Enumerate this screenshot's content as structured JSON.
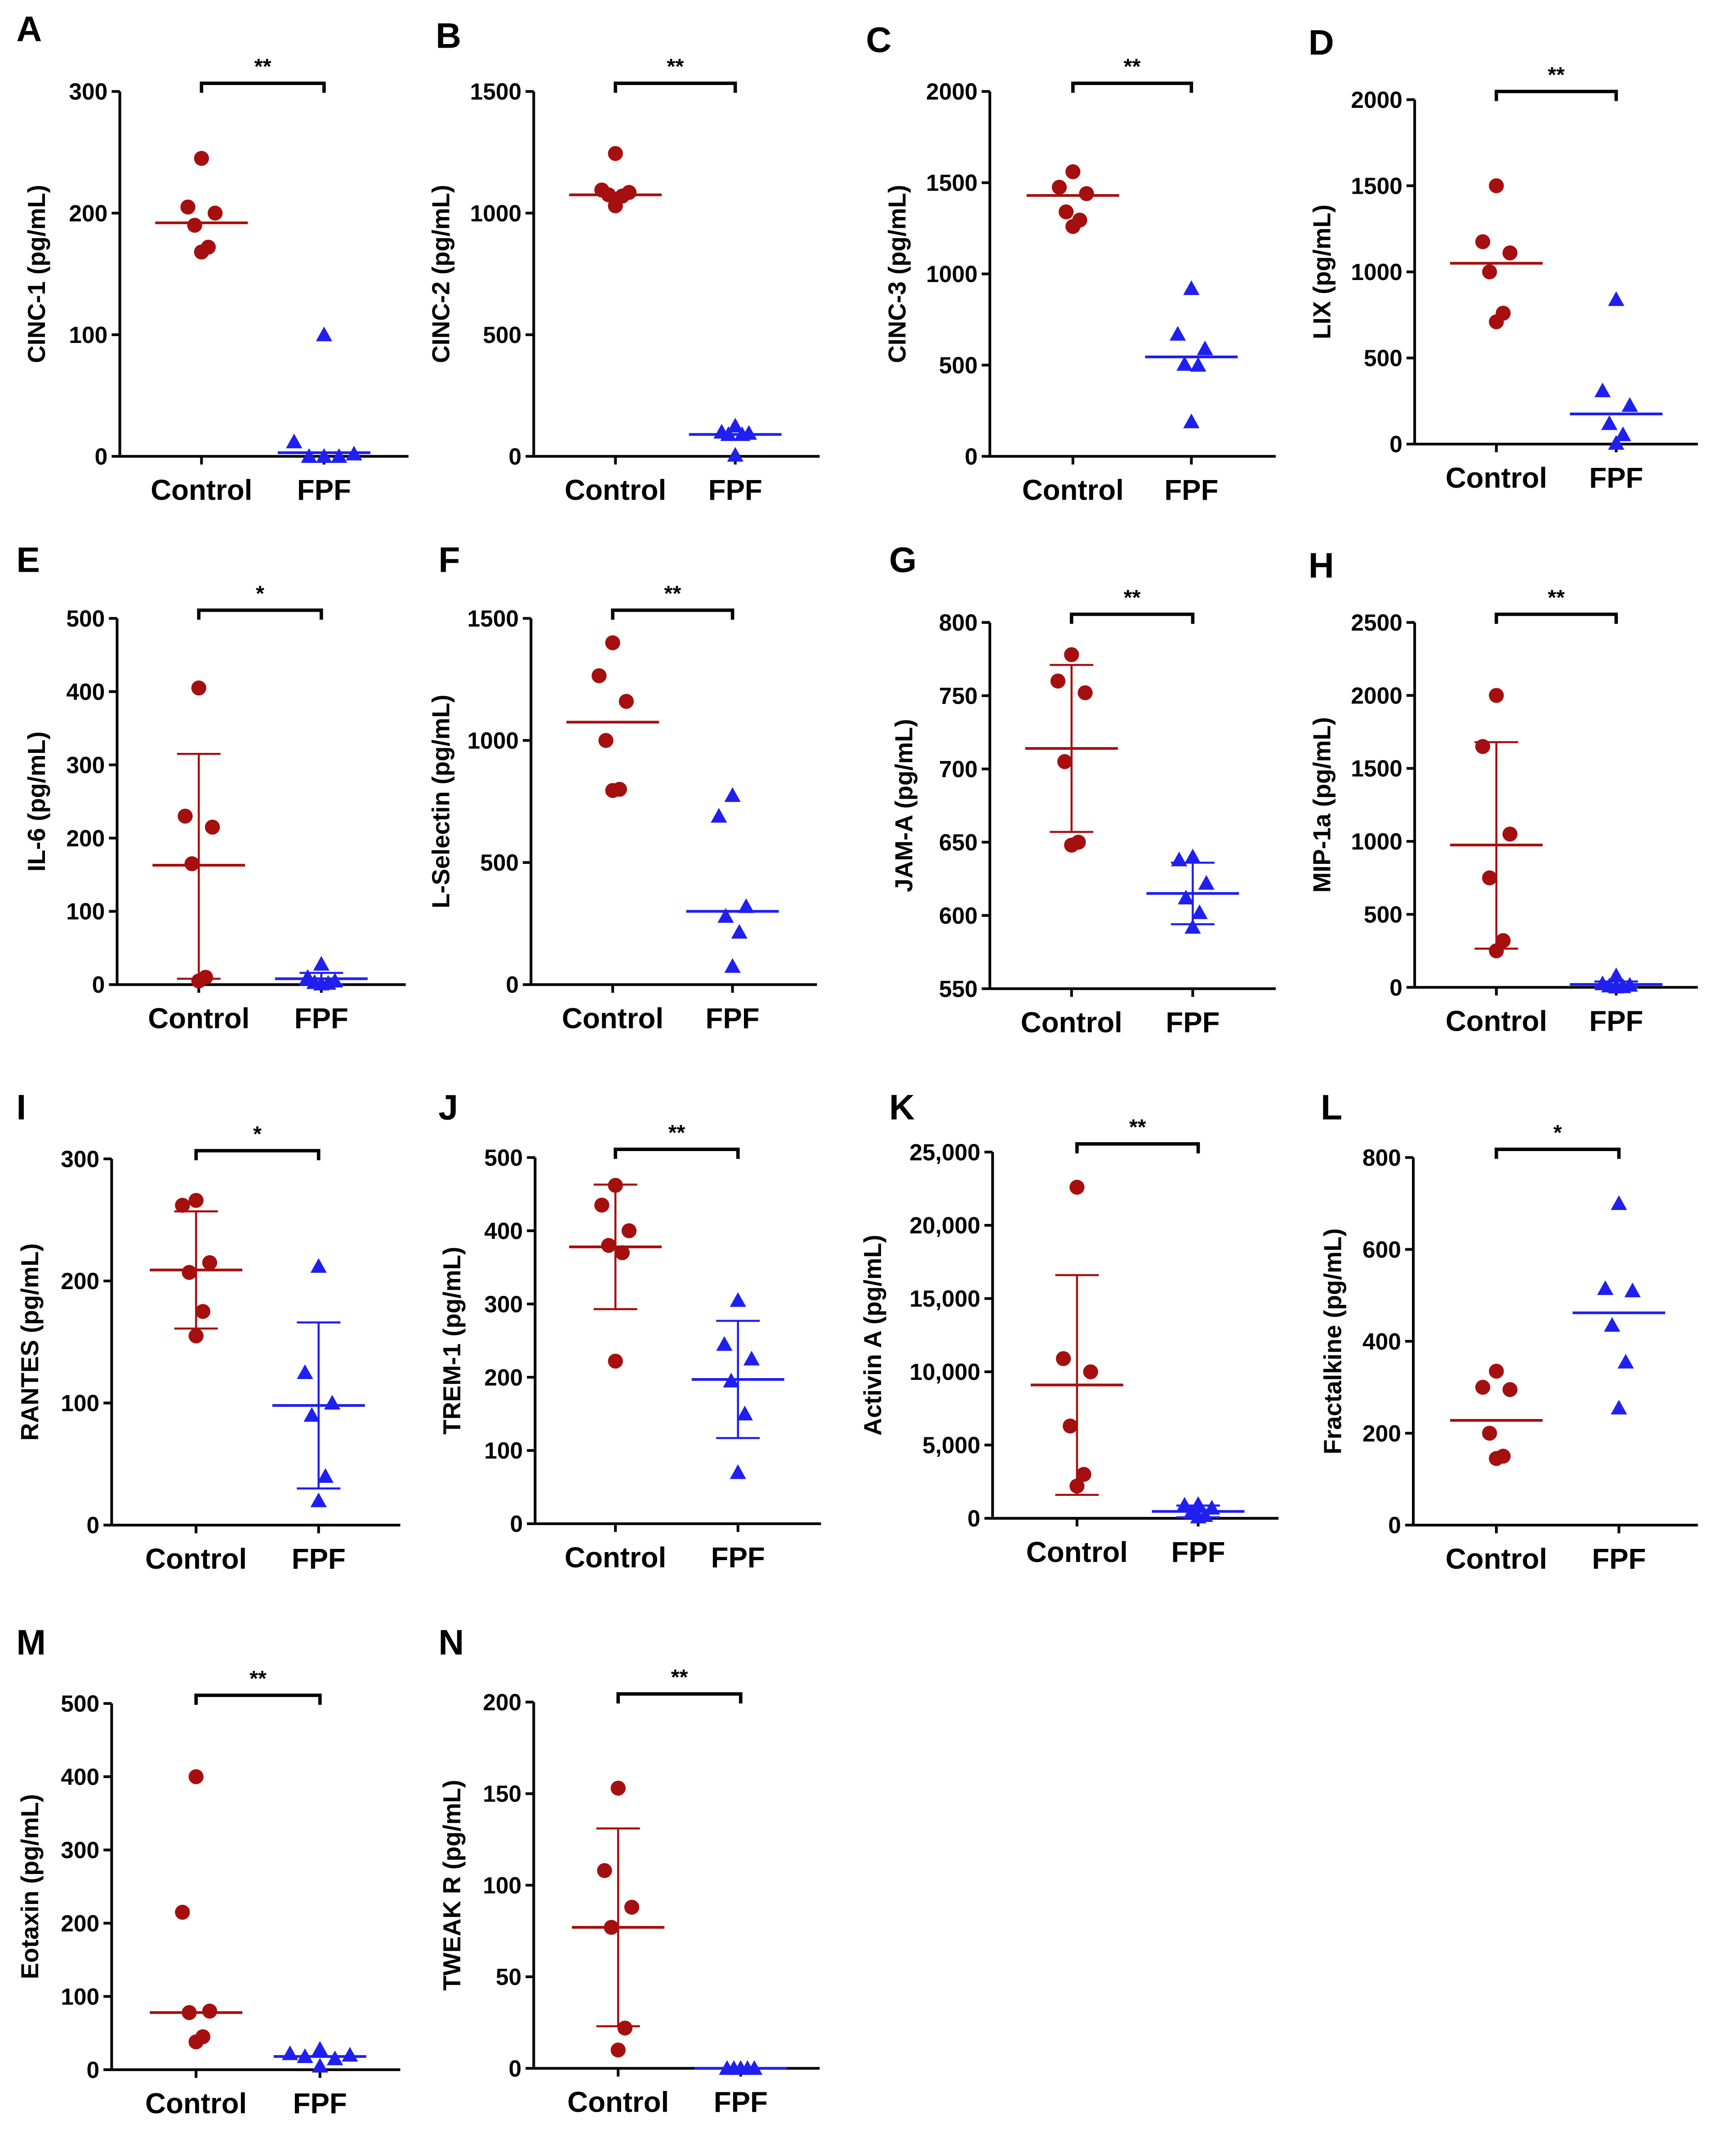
{
  "figure": {
    "colors": {
      "control": "#a50f0f",
      "fpf": "#1f1ff0",
      "axis": "#000000"
    }
  },
  "chart_data": [
    {
      "type": "scatter",
      "panel": "A",
      "ylabel": "CINC-1 (pg/mL)",
      "yticks": [
        0,
        100,
        200,
        300
      ],
      "tick_labels": [
        "0",
        "100",
        "200",
        "300"
      ],
      "ylim": [
        0,
        300
      ],
      "categories": [
        "Control",
        "FPF"
      ],
      "sig": "**",
      "error_bars": false,
      "series": [
        {
          "name": "Control",
          "values": [
            245,
            205,
            200,
            190,
            172,
            168
          ],
          "center": 192
        },
        {
          "name": "FPF",
          "values": [
            100,
            12,
            2,
            0,
            0,
            0
          ],
          "center": 3
        }
      ]
    },
    {
      "type": "scatter",
      "panel": "B",
      "ylabel": "CINC-2 (pg/mL)",
      "yticks": [
        0,
        500,
        1000,
        1500
      ],
      "tick_labels": [
        "0",
        "500",
        "1000",
        "1500"
      ],
      "ylim": [
        0,
        1500
      ],
      "categories": [
        "Control",
        "FPF"
      ],
      "sig": "**",
      "error_bars": false,
      "series": [
        {
          "name": "Control",
          "values": [
            1245,
            1095,
            1085,
            1075,
            1070,
            1030
          ],
          "center": 1075
        },
        {
          "name": "FPF",
          "values": [
            125,
            100,
            95,
            90,
            90,
            5
          ],
          "center": 90
        }
      ]
    },
    {
      "type": "scatter",
      "panel": "C",
      "ylabel": "CINC-3 (pg/mL)",
      "yticks": [
        0,
        500,
        1000,
        1500,
        2000
      ],
      "tick_labels": [
        "0",
        "500",
        "1000",
        "1500",
        "2000"
      ],
      "ylim": [
        0,
        2000
      ],
      "categories": [
        "Control",
        "FPF"
      ],
      "sig": "**",
      "error_bars": false,
      "series": [
        {
          "name": "Control",
          "values": [
            1560,
            1475,
            1440,
            1340,
            1295,
            1260
          ],
          "center": 1430
        },
        {
          "name": "FPF",
          "values": [
            920,
            670,
            590,
            505,
            500,
            190
          ],
          "center": 545
        }
      ]
    },
    {
      "type": "scatter",
      "panel": "D",
      "ylabel": "LIX (pg/mL)",
      "yticks": [
        0,
        500,
        1000,
        1500,
        2000
      ],
      "tick_labels": [
        "0",
        "500",
        "1000",
        "1500",
        "2000"
      ],
      "ylim": [
        0,
        2000
      ],
      "categories": [
        "Control",
        "FPF"
      ],
      "sig": "**",
      "error_bars": false,
      "series": [
        {
          "name": "Control",
          "values": [
            1500,
            1175,
            1110,
            1000,
            760,
            710
          ],
          "center": 1050
        },
        {
          "name": "FPF",
          "values": [
            840,
            310,
            225,
            120,
            55,
            5
          ],
          "center": 175
        }
      ]
    },
    {
      "type": "scatter",
      "panel": "E",
      "ylabel": "IL-6 (pg/mL)",
      "yticks": [
        0,
        100,
        200,
        300,
        400,
        500
      ],
      "tick_labels": [
        "0",
        "100",
        "200",
        "300",
        "400",
        "500"
      ],
      "ylim": [
        0,
        500
      ],
      "categories": [
        "Control",
        "FPF"
      ],
      "sig": "*",
      "error_bars": true,
      "series": [
        {
          "name": "Control",
          "values": [
            405,
            230,
            215,
            165,
            10,
            5
          ],
          "center": 163,
          "err_low": 8,
          "err_high": 315
        },
        {
          "name": "FPF",
          "values": [
            28,
            10,
            5,
            3,
            2,
            1
          ],
          "center": 8,
          "err_low": 0,
          "err_high": 16
        }
      ]
    },
    {
      "type": "scatter",
      "panel": "F",
      "ylabel": "L-Selectin (pg/mL)",
      "yticks": [
        0,
        500,
        1000,
        1500
      ],
      "tick_labels": [
        "0",
        "500",
        "1000",
        "1500"
      ],
      "ylim": [
        0,
        1500
      ],
      "categories": [
        "Control",
        "FPF"
      ],
      "sig": "**",
      "error_bars": false,
      "series": [
        {
          "name": "Control",
          "values": [
            1400,
            1265,
            1160,
            1000,
            800,
            795
          ],
          "center": 1075
        },
        {
          "name": "FPF",
          "values": [
            775,
            690,
            320,
            280,
            215,
            75
          ],
          "center": 300
        }
      ]
    },
    {
      "type": "scatter",
      "panel": "G",
      "ylabel": "JAM-A (pg/mL)",
      "yticks": [
        550,
        600,
        650,
        700,
        750,
        800
      ],
      "tick_labels": [
        "550",
        "600",
        "650",
        "700",
        "750",
        "800"
      ],
      "ylim": [
        550,
        800
      ],
      "categories": [
        "Control",
        "FPF"
      ],
      "sig": "**",
      "error_bars": true,
      "series": [
        {
          "name": "Control",
          "values": [
            778,
            760,
            752,
            705,
            650,
            648
          ],
          "center": 714,
          "err_low": 657,
          "err_high": 771
        },
        {
          "name": "FPF",
          "values": [
            640,
            638,
            622,
            612,
            602,
            592
          ],
          "center": 615,
          "err_low": 594,
          "err_high": 636
        }
      ]
    },
    {
      "type": "scatter",
      "panel": "H",
      "ylabel": "MIP-1a (pg/mL)",
      "yticks": [
        0,
        500,
        1000,
        1500,
        2000,
        2500
      ],
      "tick_labels": [
        "0",
        "500",
        "1000",
        "1500",
        "2000",
        "2500"
      ],
      "ylim": [
        0,
        2500
      ],
      "categories": [
        "Control",
        "FPF"
      ],
      "sig": "**",
      "error_bars": true,
      "series": [
        {
          "name": "Control",
          "values": [
            2000,
            1650,
            1050,
            750,
            320,
            250
          ],
          "center": 975,
          "err_low": 265,
          "err_high": 1680
        },
        {
          "name": "FPF",
          "values": [
            80,
            25,
            15,
            10,
            5,
            3
          ],
          "center": 20,
          "err_low": 0,
          "err_high": 40
        }
      ]
    },
    {
      "type": "scatter",
      "panel": "I",
      "ylabel": "RANTES (pg/mL)",
      "yticks": [
        0,
        100,
        200,
        300
      ],
      "tick_labels": [
        "0",
        "100",
        "200",
        "300"
      ],
      "ylim": [
        0,
        300
      ],
      "categories": [
        "Control",
        "FPF"
      ],
      "sig": "*",
      "error_bars": true,
      "series": [
        {
          "name": "Control",
          "values": [
            266,
            262,
            215,
            207,
            175,
            155
          ],
          "center": 209,
          "err_low": 161,
          "err_high": 257
        },
        {
          "name": "FPF",
          "values": [
            212,
            125,
            100,
            90,
            40,
            20
          ],
          "center": 98,
          "err_low": 30,
          "err_high": 166
        }
      ]
    },
    {
      "type": "scatter",
      "panel": "J",
      "ylabel": "TREM-1 (pg/mL)",
      "yticks": [
        0,
        100,
        200,
        300,
        400,
        500
      ],
      "tick_labels": [
        "0",
        "100",
        "200",
        "300",
        "400",
        "500"
      ],
      "ylim": [
        0,
        500
      ],
      "categories": [
        "Control",
        "FPF"
      ],
      "sig": "**",
      "error_bars": true,
      "series": [
        {
          "name": "Control",
          "values": [
            462,
            435,
            400,
            380,
            370,
            222
          ],
          "center": 378,
          "err_low": 293,
          "err_high": 463
        },
        {
          "name": "FPF",
          "values": [
            305,
            245,
            225,
            195,
            150,
            70
          ],
          "center": 197,
          "err_low": 117,
          "err_high": 277
        }
      ]
    },
    {
      "type": "scatter",
      "panel": "K",
      "ylabel": "Activin A (pg/mL)",
      "yticks": [
        0,
        5000,
        10000,
        15000,
        20000,
        25000
      ],
      "tick_labels": [
        "0",
        "5,000",
        "10,000",
        "15,000",
        "20,000",
        "25,000"
      ],
      "ylim": [
        0,
        25000
      ],
      "categories": [
        "Control",
        "FPF"
      ],
      "sig": "**",
      "error_bars": true,
      "series": [
        {
          "name": "Control",
          "values": [
            22600,
            10900,
            10000,
            6300,
            3000,
            2200
          ],
          "center": 9100,
          "err_low": 1600,
          "err_high": 16600
        },
        {
          "name": "FPF",
          "values": [
            950,
            900,
            700,
            400,
            200,
            100
          ],
          "center": 470,
          "err_low": 70,
          "err_high": 870
        }
      ]
    },
    {
      "type": "scatter",
      "panel": "L",
      "ylabel": "Fractalkine (pg/mL)",
      "yticks": [
        0,
        200,
        400,
        600,
        800
      ],
      "tick_labels": [
        "0",
        "200",
        "400",
        "600",
        "800"
      ],
      "ylim": [
        0,
        800
      ],
      "categories": [
        "Control",
        "FPF"
      ],
      "sig": "*",
      "error_bars": false,
      "series": [
        {
          "name": "Control",
          "values": [
            335,
            300,
            295,
            200,
            150,
            145
          ],
          "center": 228
        },
        {
          "name": "FPF",
          "values": [
            700,
            515,
            510,
            435,
            355,
            255
          ],
          "center": 462
        }
      ]
    },
    {
      "type": "scatter",
      "panel": "M",
      "ylabel": "Eotaxin (pg/mL)",
      "yticks": [
        0,
        100,
        200,
        300,
        400,
        500
      ],
      "tick_labels": [
        "0",
        "100",
        "200",
        "300",
        "400",
        "500"
      ],
      "ylim": [
        0,
        500
      ],
      "categories": [
        "Control",
        "FPF"
      ],
      "sig": "**",
      "error_bars": false,
      "series": [
        {
          "name": "Control",
          "values": [
            400,
            215,
            80,
            78,
            45,
            38
          ],
          "center": 78
        },
        {
          "name": "FPF",
          "values": [
            28,
            22,
            20,
            18,
            15,
            5
          ],
          "center": 18
        }
      ]
    },
    {
      "type": "scatter",
      "panel": "N",
      "ylabel": "TWEAK R (pg/mL)",
      "yticks": [
        0,
        50,
        100,
        150,
        200
      ],
      "tick_labels": [
        "0",
        "50",
        "100",
        "150",
        "200"
      ],
      "ylim": [
        0,
        200
      ],
      "categories": [
        "Control",
        "FPF"
      ],
      "sig": "**",
      "error_bars": true,
      "series": [
        {
          "name": "Control",
          "values": [
            153,
            108,
            88,
            77,
            22,
            10
          ],
          "center": 77,
          "err_low": 23,
          "err_high": 131
        },
        {
          "name": "FPF",
          "values": [
            0,
            0,
            0,
            0,
            0,
            0
          ],
          "center": 0,
          "err_low": 0,
          "err_high": 0
        }
      ]
    }
  ]
}
